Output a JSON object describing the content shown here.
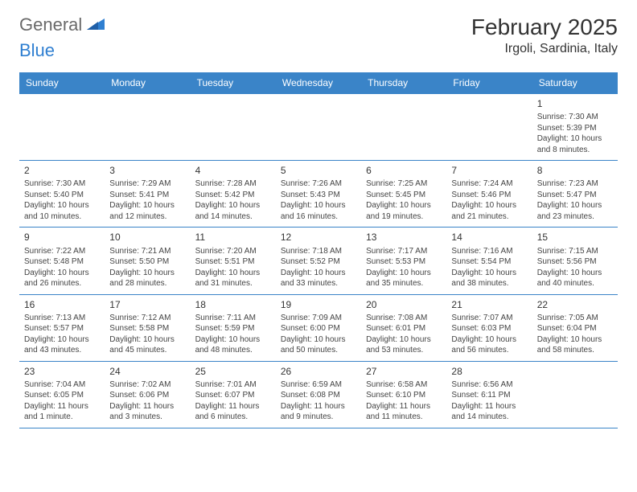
{
  "logo": {
    "general": "General",
    "blue": "Blue"
  },
  "title": "February 2025",
  "location": "Irgoli, Sardinia, Italy",
  "colors": {
    "header_bg": "#3a84c8",
    "header_text": "#ffffff",
    "border": "#3a84c8",
    "logo_gray": "#6a6a6a",
    "logo_blue": "#2f7fd1",
    "body_text": "#333333"
  },
  "days_of_week": [
    "Sunday",
    "Monday",
    "Tuesday",
    "Wednesday",
    "Thursday",
    "Friday",
    "Saturday"
  ],
  "weeks": [
    [
      null,
      null,
      null,
      null,
      null,
      null,
      {
        "n": "1",
        "sr": "Sunrise: 7:30 AM",
        "ss": "Sunset: 5:39 PM",
        "dl": "Daylight: 10 hours and 8 minutes."
      }
    ],
    [
      {
        "n": "2",
        "sr": "Sunrise: 7:30 AM",
        "ss": "Sunset: 5:40 PM",
        "dl": "Daylight: 10 hours and 10 minutes."
      },
      {
        "n": "3",
        "sr": "Sunrise: 7:29 AM",
        "ss": "Sunset: 5:41 PM",
        "dl": "Daylight: 10 hours and 12 minutes."
      },
      {
        "n": "4",
        "sr": "Sunrise: 7:28 AM",
        "ss": "Sunset: 5:42 PM",
        "dl": "Daylight: 10 hours and 14 minutes."
      },
      {
        "n": "5",
        "sr": "Sunrise: 7:26 AM",
        "ss": "Sunset: 5:43 PM",
        "dl": "Daylight: 10 hours and 16 minutes."
      },
      {
        "n": "6",
        "sr": "Sunrise: 7:25 AM",
        "ss": "Sunset: 5:45 PM",
        "dl": "Daylight: 10 hours and 19 minutes."
      },
      {
        "n": "7",
        "sr": "Sunrise: 7:24 AM",
        "ss": "Sunset: 5:46 PM",
        "dl": "Daylight: 10 hours and 21 minutes."
      },
      {
        "n": "8",
        "sr": "Sunrise: 7:23 AM",
        "ss": "Sunset: 5:47 PM",
        "dl": "Daylight: 10 hours and 23 minutes."
      }
    ],
    [
      {
        "n": "9",
        "sr": "Sunrise: 7:22 AM",
        "ss": "Sunset: 5:48 PM",
        "dl": "Daylight: 10 hours and 26 minutes."
      },
      {
        "n": "10",
        "sr": "Sunrise: 7:21 AM",
        "ss": "Sunset: 5:50 PM",
        "dl": "Daylight: 10 hours and 28 minutes."
      },
      {
        "n": "11",
        "sr": "Sunrise: 7:20 AM",
        "ss": "Sunset: 5:51 PM",
        "dl": "Daylight: 10 hours and 31 minutes."
      },
      {
        "n": "12",
        "sr": "Sunrise: 7:18 AM",
        "ss": "Sunset: 5:52 PM",
        "dl": "Daylight: 10 hours and 33 minutes."
      },
      {
        "n": "13",
        "sr": "Sunrise: 7:17 AM",
        "ss": "Sunset: 5:53 PM",
        "dl": "Daylight: 10 hours and 35 minutes."
      },
      {
        "n": "14",
        "sr": "Sunrise: 7:16 AM",
        "ss": "Sunset: 5:54 PM",
        "dl": "Daylight: 10 hours and 38 minutes."
      },
      {
        "n": "15",
        "sr": "Sunrise: 7:15 AM",
        "ss": "Sunset: 5:56 PM",
        "dl": "Daylight: 10 hours and 40 minutes."
      }
    ],
    [
      {
        "n": "16",
        "sr": "Sunrise: 7:13 AM",
        "ss": "Sunset: 5:57 PM",
        "dl": "Daylight: 10 hours and 43 minutes."
      },
      {
        "n": "17",
        "sr": "Sunrise: 7:12 AM",
        "ss": "Sunset: 5:58 PM",
        "dl": "Daylight: 10 hours and 45 minutes."
      },
      {
        "n": "18",
        "sr": "Sunrise: 7:11 AM",
        "ss": "Sunset: 5:59 PM",
        "dl": "Daylight: 10 hours and 48 minutes."
      },
      {
        "n": "19",
        "sr": "Sunrise: 7:09 AM",
        "ss": "Sunset: 6:00 PM",
        "dl": "Daylight: 10 hours and 50 minutes."
      },
      {
        "n": "20",
        "sr": "Sunrise: 7:08 AM",
        "ss": "Sunset: 6:01 PM",
        "dl": "Daylight: 10 hours and 53 minutes."
      },
      {
        "n": "21",
        "sr": "Sunrise: 7:07 AM",
        "ss": "Sunset: 6:03 PM",
        "dl": "Daylight: 10 hours and 56 minutes."
      },
      {
        "n": "22",
        "sr": "Sunrise: 7:05 AM",
        "ss": "Sunset: 6:04 PM",
        "dl": "Daylight: 10 hours and 58 minutes."
      }
    ],
    [
      {
        "n": "23",
        "sr": "Sunrise: 7:04 AM",
        "ss": "Sunset: 6:05 PM",
        "dl": "Daylight: 11 hours and 1 minute."
      },
      {
        "n": "24",
        "sr": "Sunrise: 7:02 AM",
        "ss": "Sunset: 6:06 PM",
        "dl": "Daylight: 11 hours and 3 minutes."
      },
      {
        "n": "25",
        "sr": "Sunrise: 7:01 AM",
        "ss": "Sunset: 6:07 PM",
        "dl": "Daylight: 11 hours and 6 minutes."
      },
      {
        "n": "26",
        "sr": "Sunrise: 6:59 AM",
        "ss": "Sunset: 6:08 PM",
        "dl": "Daylight: 11 hours and 9 minutes."
      },
      {
        "n": "27",
        "sr": "Sunrise: 6:58 AM",
        "ss": "Sunset: 6:10 PM",
        "dl": "Daylight: 11 hours and 11 minutes."
      },
      {
        "n": "28",
        "sr": "Sunrise: 6:56 AM",
        "ss": "Sunset: 6:11 PM",
        "dl": "Daylight: 11 hours and 14 minutes."
      },
      null
    ]
  ]
}
